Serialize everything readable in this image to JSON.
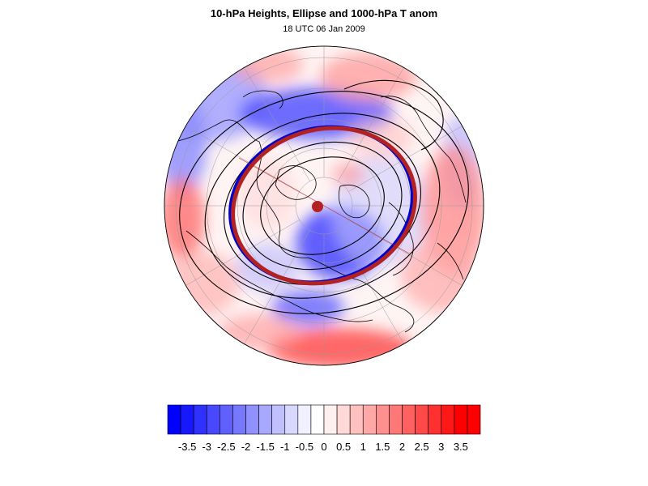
{
  "title": "10-hPa Heights, Ellipse and 1000-hPa T anom",
  "subtitle": "18 UTC 06 Jan 2009",
  "colorbar": {
    "colors": [
      "#0000ff",
      "#1818ff",
      "#3030ff",
      "#4848ff",
      "#6060ff",
      "#7878ff",
      "#9090ff",
      "#a8a8ff",
      "#c0c0ff",
      "#d8d8ff",
      "#f0f0ff",
      "#ffffff",
      "#fff0f0",
      "#ffd8d8",
      "#ffc0c0",
      "#ffa8a8",
      "#ff9090",
      "#ff7878",
      "#ff6060",
      "#ff4848",
      "#ff3030",
      "#ff1818",
      "#ff0000",
      "#ff0000"
    ],
    "tick_labels": [
      "-3.5",
      "-3",
      "-2.5",
      "-2",
      "-1.5",
      "-1",
      "-0.5",
      "0",
      "0.5",
      "1",
      "1.5",
      "2",
      "2.5",
      "3",
      "3.5"
    ],
    "tick_values": [
      -3.5,
      -3,
      -2.5,
      -2,
      -1.5,
      -1,
      -0.5,
      0,
      0.5,
      1,
      1.5,
      2,
      2.5,
      3,
      3.5
    ],
    "min": -4,
    "max": 4
  },
  "map": {
    "projection": "polar stereographic, north pole",
    "ellipse_outer_color": "#b22222",
    "ellipse_inner_color": "#0000cc",
    "center_marker_color": "#b22222",
    "contour_color": "#000000",
    "coast_color": "#000000",
    "warm_color": "#ff8080",
    "cold_color": "#6f6fff"
  }
}
